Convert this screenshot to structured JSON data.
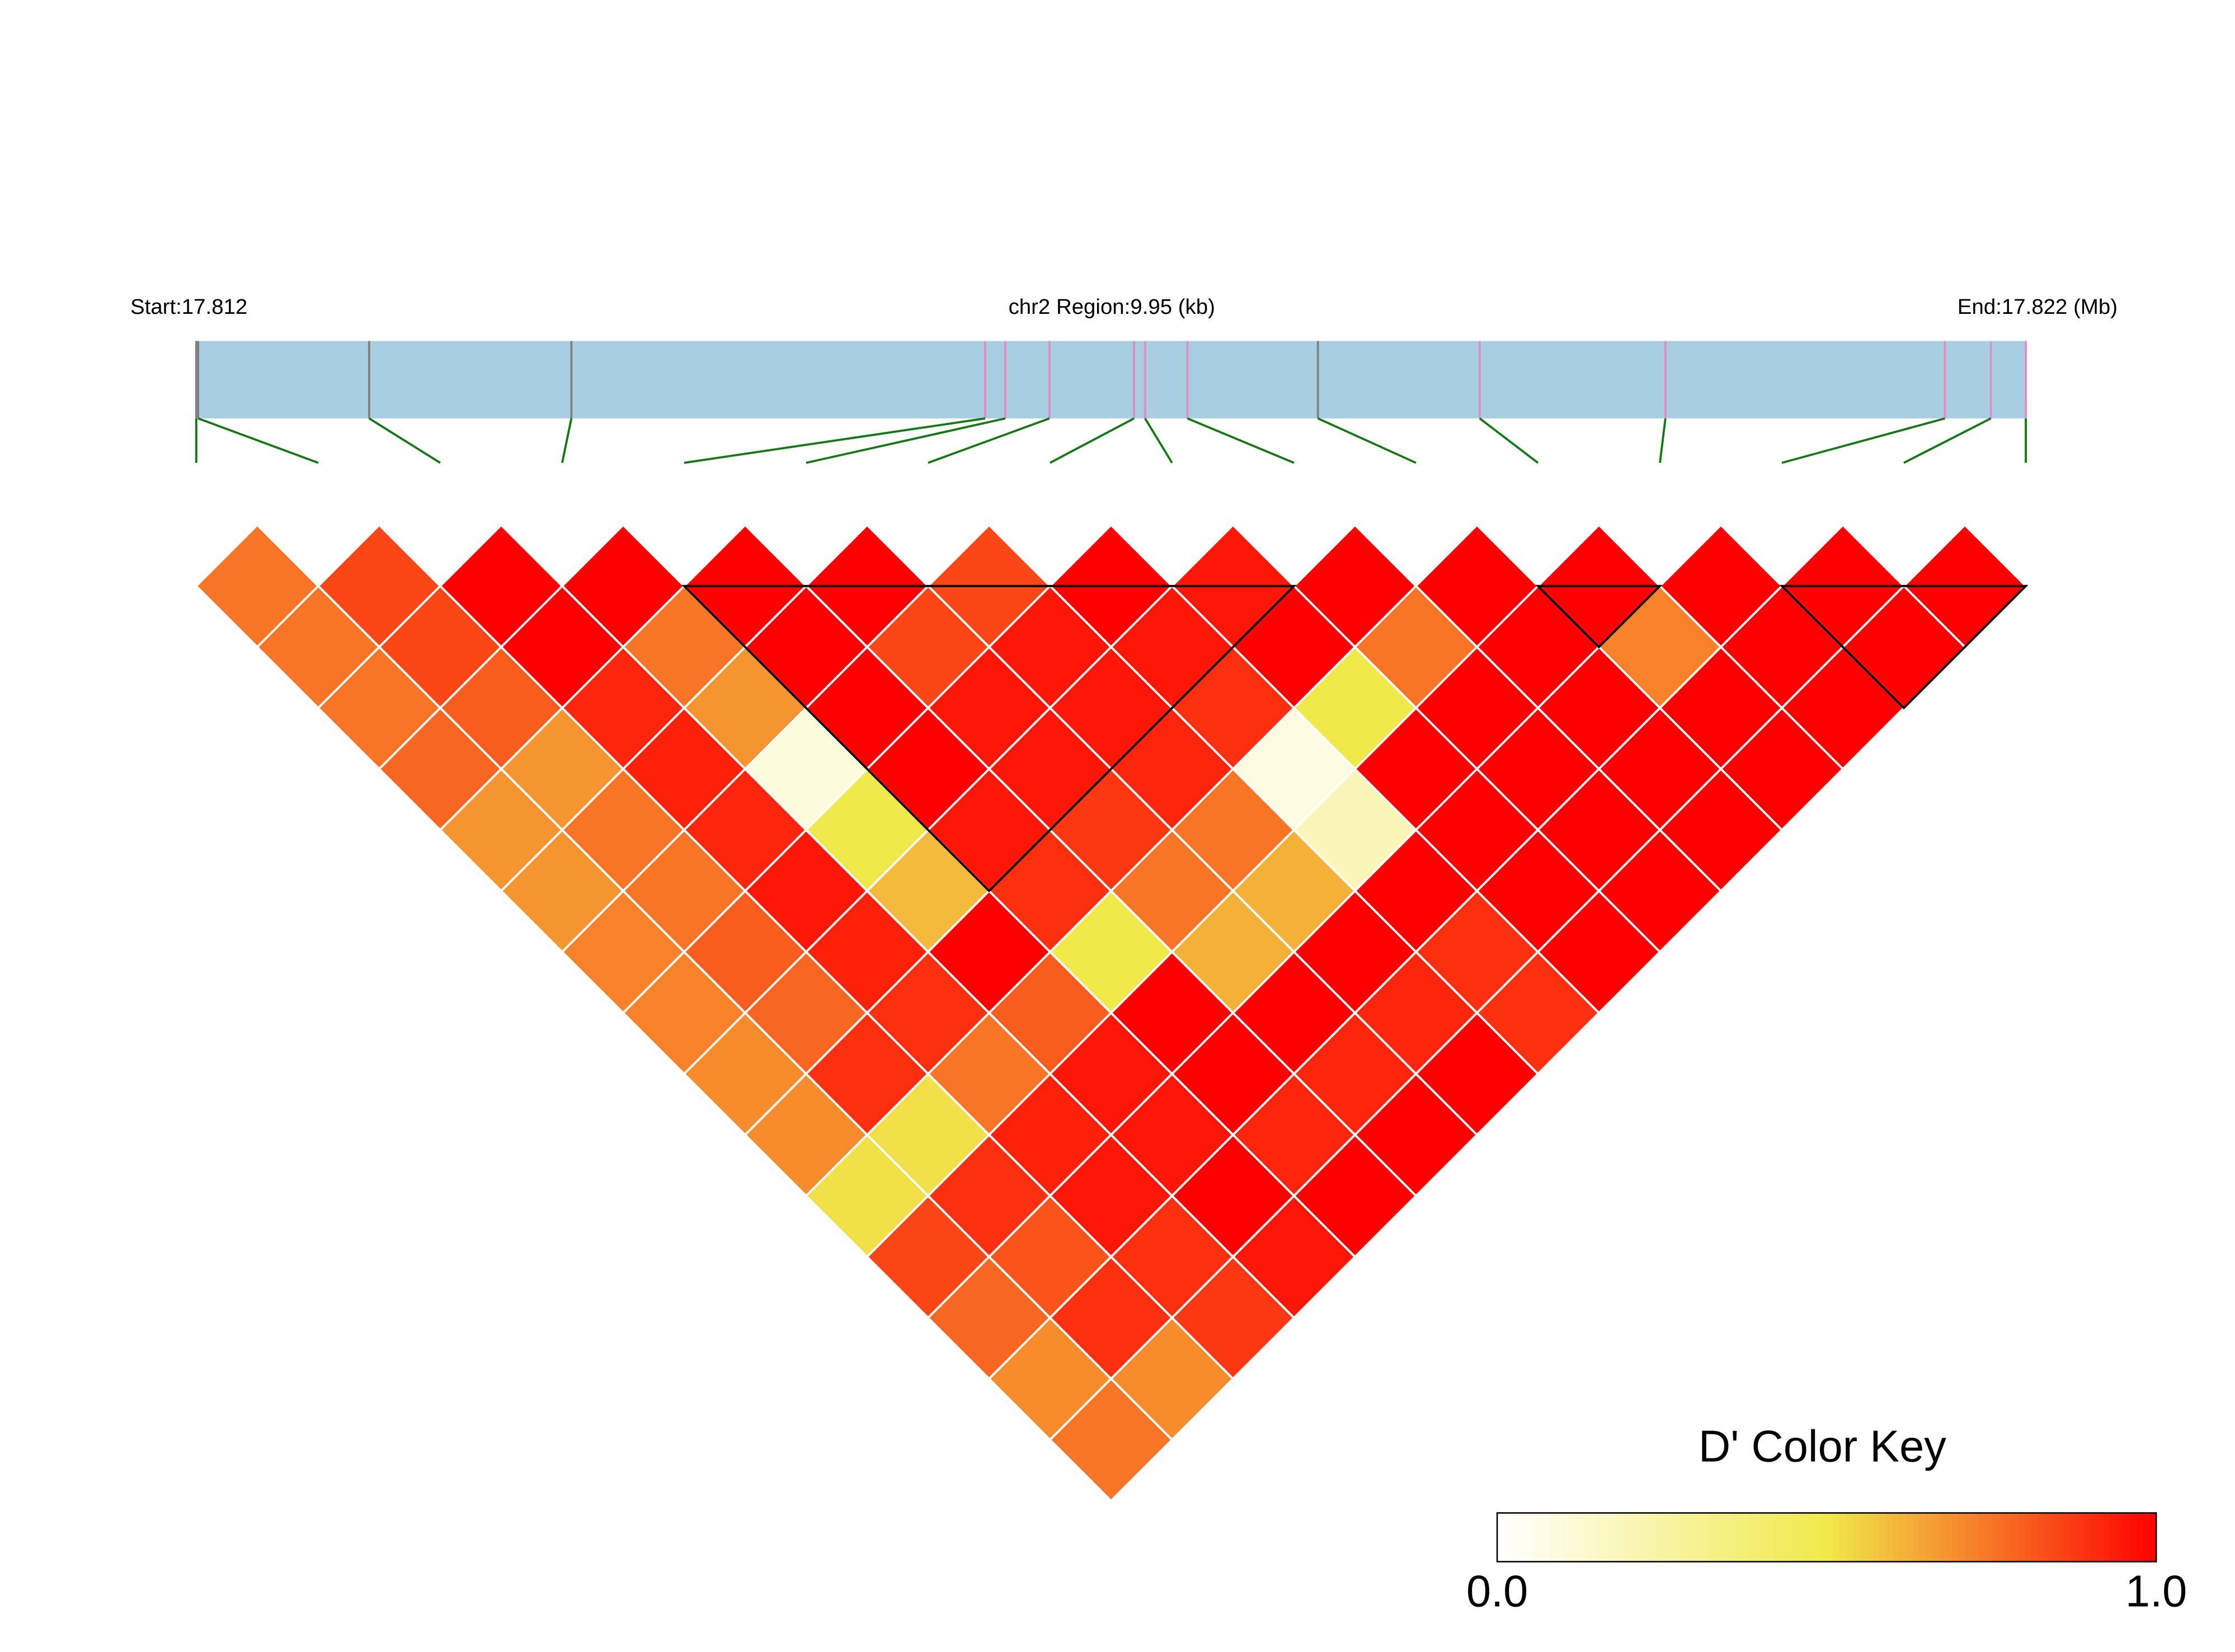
{
  "chart_data": {
    "type": "ld-heatmap",
    "start_label": "Start:17.812",
    "region_label": "chr2 Region:9.95 (kb)",
    "end_label": "End:17.822 (Mb)",
    "key_title": "D' Color Key",
    "key_ticks": [
      {
        "value": 0,
        "label": "0.0"
      },
      {
        "value": 1,
        "label": "1.0"
      }
    ],
    "colors": [
      "#ffffff",
      "#f0e94a",
      "#ff0000"
    ],
    "bar_color": "#a8cfe1",
    "link_color": "#137a13",
    "xlim": [
      0,
      9.95
    ],
    "snp_positions": [
      0,
      0.01,
      0.94,
      2.04,
      4.29,
      4.4,
      4.64,
      5.1,
      5.16,
      5.39,
      6.1,
      6.98,
      7.99,
      9.51,
      9.76,
      9.95
    ],
    "snp_colors": [
      "#808080",
      "#808080",
      "#808080",
      "#808080",
      "#e48bc4",
      "#e48bc4",
      "#e48bc4",
      "#e48bc4",
      "#e48bc4",
      "#e48bc4",
      "#808080",
      "#e48bc4",
      "#e48bc4",
      "#e48bc4",
      "#e48bc4",
      "#e48bc4"
    ],
    "values": [
      [
        0.75,
        0.85,
        1,
        1,
        1,
        1,
        0.85,
        1,
        0.95,
        1,
        1,
        1,
        1,
        1,
        1
      ],
      [
        0.75,
        0.85,
        1,
        0.75,
        1,
        0.85,
        0.95,
        0.95,
        1,
        0.75,
        1,
        0.72,
        1,
        1
      ],
      [
        0.75,
        0.8,
        0.92,
        0.68,
        1,
        0.95,
        0.95,
        0.9,
        0.5,
        1,
        1,
        1,
        1
      ],
      [
        0.78,
        0.68,
        0.93,
        0.1,
        1,
        0.95,
        0.92,
        0.08,
        1,
        1,
        1,
        1
      ],
      [
        0.68,
        0.75,
        0.92,
        0.5,
        0.95,
        0.88,
        0.75,
        0.2,
        1,
        1,
        1
      ],
      [
        0.68,
        0.75,
        0.95,
        0.6,
        0.9,
        0.75,
        0.62,
        1,
        1,
        1
      ],
      [
        0.72,
        0.8,
        0.93,
        1,
        0.5,
        0.62,
        1,
        0.9,
        1
      ],
      [
        0.72,
        0.78,
        0.9,
        0.8,
        1,
        1,
        0.92,
        0.9
      ],
      [
        0.7,
        0.9,
        0.75,
        0.95,
        1,
        0.92,
        1
      ],
      [
        0.7,
        0.52,
        0.93,
        0.95,
        0.92,
        1
      ],
      [
        0.52,
        0.9,
        0.95,
        1,
        1
      ],
      [
        0.85,
        0.82,
        0.9,
        0.95
      ],
      [
        0.78,
        0.9,
        0.88
      ],
      [
        0.7,
        0.7
      ],
      [
        0.75
      ]
    ],
    "blocks": [
      [
        4,
        9
      ],
      [
        11,
        12
      ],
      [
        13,
        15
      ]
    ]
  }
}
